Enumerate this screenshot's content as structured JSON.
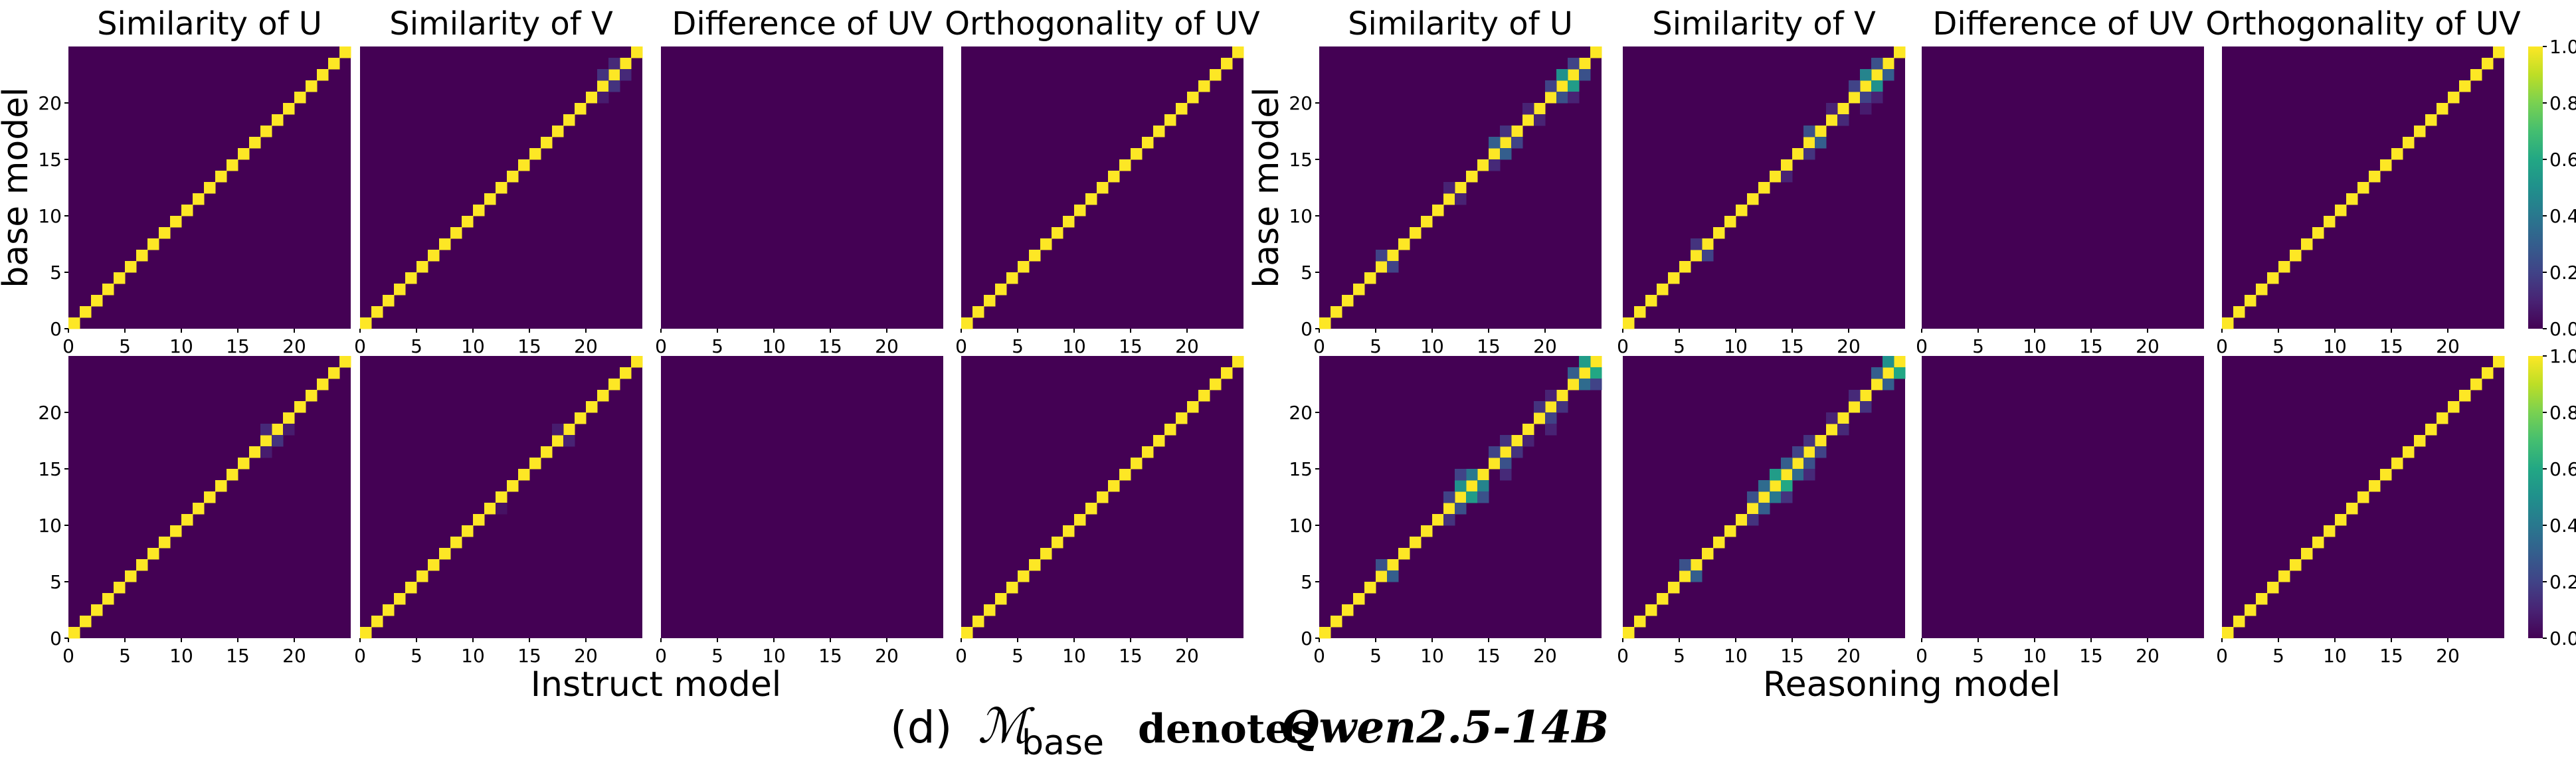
{
  "chart_data": {
    "type": "heatmap",
    "grid_size": 25,
    "value_range": [
      0,
      1
    ],
    "colormap": "viridis",
    "panel_titles": [
      "Similarity of U",
      "Similarity of V",
      "Difference of UV",
      "Orthogonality of UV"
    ],
    "x_ticks": [
      0,
      5,
      10,
      15,
      20
    ],
    "y_ticks": [
      0,
      5,
      10,
      15,
      20
    ],
    "y_axis_label": "base model",
    "colorbar_ticks": [
      "0.0",
      "0.2",
      "0.4",
      "0.6",
      "0.8",
      "1.0"
    ],
    "groups": [
      {
        "xlabel": "Instruct model",
        "rows": [
          {
            "panels": [
              {
                "kind": "diagonal",
                "off": []
              },
              {
                "kind": "diagonal",
                "off": [
                  [
                    21,
                    22,
                    0.15
                  ],
                  [
                    22,
                    21,
                    0.15
                  ],
                  [
                    22,
                    23,
                    0.12
                  ],
                  [
                    23,
                    22,
                    0.12
                  ],
                  [
                    20,
                    21,
                    0.08
                  ]
                ]
              },
              {
                "kind": "empty",
                "off": []
              },
              {
                "kind": "diagonal",
                "off": []
              }
            ]
          },
          {
            "panels": [
              {
                "kind": "diagonal",
                "off": [
                  [
                    17,
                    18,
                    0.15
                  ],
                  [
                    18,
                    17,
                    0.12
                  ],
                  [
                    16,
                    17,
                    0.08
                  ],
                  [
                    18,
                    19,
                    0.08
                  ]
                ]
              },
              {
                "kind": "diagonal",
                "off": [
                  [
                    17,
                    18,
                    0.1
                  ],
                  [
                    18,
                    17,
                    0.08
                  ],
                  [
                    11,
                    12,
                    0.05
                  ]
                ]
              },
              {
                "kind": "empty",
                "off": []
              },
              {
                "kind": "diagonal",
                "off": []
              }
            ]
          }
        ]
      },
      {
        "xlabel": "Reasoning model",
        "rows": [
          {
            "panels": [
              {
                "kind": "diagonal",
                "off": [
                  [
                    21,
                    22,
                    0.55
                  ],
                  [
                    22,
                    21,
                    0.5
                  ],
                  [
                    20,
                    21,
                    0.25
                  ],
                  [
                    21,
                    20,
                    0.2
                  ],
                  [
                    22,
                    23,
                    0.25
                  ],
                  [
                    23,
                    22,
                    0.2
                  ],
                  [
                    15,
                    16,
                    0.3
                  ],
                  [
                    16,
                    15,
                    0.3
                  ],
                  [
                    16,
                    17,
                    0.2
                  ],
                  [
                    17,
                    16,
                    0.15
                  ],
                  [
                    14,
                    15,
                    0.12
                  ],
                  [
                    5,
                    6,
                    0.2
                  ],
                  [
                    6,
                    5,
                    0.2
                  ],
                  [
                    11,
                    12,
                    0.1
                  ],
                  [
                    12,
                    11,
                    0.1
                  ],
                  [
                    18,
                    19,
                    0.1
                  ],
                  [
                    19,
                    18,
                    0.1
                  ],
                  [
                    20,
                    22,
                    0.1
                  ]
                ]
              },
              {
                "kind": "diagonal",
                "off": [
                  [
                    21,
                    22,
                    0.5
                  ],
                  [
                    22,
                    21,
                    0.45
                  ],
                  [
                    20,
                    21,
                    0.2
                  ],
                  [
                    21,
                    20,
                    0.2
                  ],
                  [
                    22,
                    23,
                    0.3
                  ],
                  [
                    23,
                    22,
                    0.25
                  ],
                  [
                    16,
                    17,
                    0.3
                  ],
                  [
                    17,
                    16,
                    0.25
                  ],
                  [
                    15,
                    16,
                    0.15
                  ],
                  [
                    6,
                    7,
                    0.2
                  ],
                  [
                    7,
                    6,
                    0.15
                  ],
                  [
                    13,
                    14,
                    0.1
                  ],
                  [
                    18,
                    19,
                    0.12
                  ],
                  [
                    19,
                    18,
                    0.1
                  ],
                  [
                    20,
                    22,
                    0.1
                  ],
                  [
                    19,
                    21,
                    0.08
                  ]
                ]
              },
              {
                "kind": "empty",
                "off": []
              },
              {
                "kind": "diagonal",
                "off": []
              }
            ]
          },
          {
            "panels": [
              {
                "kind": "diagonal",
                "off": [
                  [
                    23,
                    24,
                    0.6
                  ],
                  [
                    24,
                    23,
                    0.55
                  ],
                  [
                    22,
                    23,
                    0.35
                  ],
                  [
                    23,
                    22,
                    0.3
                  ],
                  [
                    22,
                    24,
                    0.2
                  ],
                  [
                    12,
                    13,
                    0.55
                  ],
                  [
                    13,
                    12,
                    0.5
                  ],
                  [
                    13,
                    14,
                    0.45
                  ],
                  [
                    14,
                    13,
                    0.4
                  ],
                  [
                    12,
                    14,
                    0.25
                  ],
                  [
                    14,
                    12,
                    0.2
                  ],
                  [
                    11,
                    12,
                    0.25
                  ],
                  [
                    12,
                    11,
                    0.2
                  ],
                  [
                    15,
                    16,
                    0.25
                  ],
                  [
                    16,
                    15,
                    0.2
                  ],
                  [
                    16,
                    17,
                    0.15
                  ],
                  [
                    17,
                    16,
                    0.15
                  ],
                  [
                    5,
                    6,
                    0.3
                  ],
                  [
                    6,
                    5,
                    0.25
                  ],
                  [
                    10,
                    11,
                    0.15
                  ],
                  [
                    19,
                    20,
                    0.2
                  ],
                  [
                    20,
                    19,
                    0.15
                  ],
                  [
                    20,
                    21,
                    0.15
                  ],
                  [
                    21,
                    20,
                    0.1
                  ],
                  [
                    18,
                    20,
                    0.1
                  ],
                  [
                    14,
                    16,
                    0.12
                  ],
                  [
                    17,
                    18,
                    0.1
                  ]
                ]
              },
              {
                "kind": "diagonal",
                "off": [
                  [
                    23,
                    24,
                    0.6
                  ],
                  [
                    24,
                    23,
                    0.5
                  ],
                  [
                    22,
                    23,
                    0.3
                  ],
                  [
                    23,
                    22,
                    0.3
                  ],
                  [
                    13,
                    14,
                    0.6
                  ],
                  [
                    14,
                    13,
                    0.55
                  ],
                  [
                    12,
                    13,
                    0.4
                  ],
                  [
                    13,
                    12,
                    0.35
                  ],
                  [
                    14,
                    15,
                    0.35
                  ],
                  [
                    15,
                    14,
                    0.3
                  ],
                  [
                    11,
                    12,
                    0.3
                  ],
                  [
                    12,
                    11,
                    0.25
                  ],
                  [
                    15,
                    16,
                    0.25
                  ],
                  [
                    16,
                    15,
                    0.2
                  ],
                  [
                    16,
                    17,
                    0.2
                  ],
                  [
                    17,
                    16,
                    0.15
                  ],
                  [
                    5,
                    6,
                    0.3
                  ],
                  [
                    6,
                    5,
                    0.25
                  ],
                  [
                    10,
                    11,
                    0.15
                  ],
                  [
                    20,
                    21,
                    0.15
                  ],
                  [
                    21,
                    20,
                    0.12
                  ],
                  [
                    18,
                    19,
                    0.12
                  ],
                  [
                    19,
                    18,
                    0.1
                  ],
                  [
                    12,
                    14,
                    0.15
                  ],
                  [
                    14,
                    16,
                    0.12
                  ]
                ]
              },
              {
                "kind": "empty",
                "off": []
              },
              {
                "kind": "diagonal",
                "off": []
              }
            ]
          }
        ]
      }
    ],
    "caption": {
      "label": "(d)",
      "symbol": "ℳ",
      "subscript": "base",
      "text": "denotes",
      "model": "Qwen2.5-14B"
    }
  }
}
